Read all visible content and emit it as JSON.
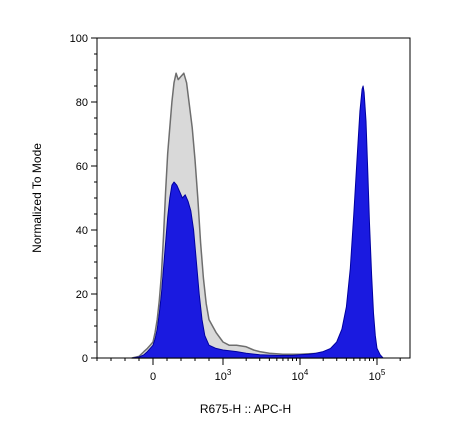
{
  "chart_data": {
    "type": "area",
    "xlabel": "R675-H :: APC-H",
    "ylabel": "Normalized To Mode",
    "x_scale": "biexponential",
    "ylim": [
      0,
      100
    ],
    "y_ticks": [
      "0",
      "20",
      "40",
      "60",
      "80",
      "100"
    ],
    "x_ticks": [
      {
        "value": 0,
        "base": "0",
        "exp": ""
      },
      {
        "value": 1000,
        "base": "10",
        "exp": "3"
      },
      {
        "value": 10000,
        "base": "10",
        "exp": "4"
      },
      {
        "value": 100000,
        "base": "10",
        "exp": "5"
      }
    ],
    "grid": false,
    "legend": "none",
    "series": [
      {
        "fill": "#d9d9d9",
        "stroke": "#6e6e6e",
        "points": [
          [
            -300,
            0
          ],
          [
            -200,
            0.5
          ],
          [
            -130,
            2
          ],
          [
            -80,
            3
          ],
          [
            -40,
            4
          ],
          [
            0,
            5
          ],
          [
            30,
            8
          ],
          [
            60,
            12
          ],
          [
            90,
            18
          ],
          [
            120,
            26
          ],
          [
            150,
            38
          ],
          [
            180,
            52
          ],
          [
            210,
            64
          ],
          [
            240,
            72
          ],
          [
            270,
            80
          ],
          [
            300,
            86
          ],
          [
            330,
            89
          ],
          [
            360,
            87
          ],
          [
            400,
            88
          ],
          [
            440,
            89
          ],
          [
            480,
            86
          ],
          [
            520,
            79
          ],
          [
            560,
            72
          ],
          [
            600,
            62
          ],
          [
            640,
            50
          ],
          [
            680,
            36
          ],
          [
            720,
            25
          ],
          [
            760,
            17
          ],
          [
            800,
            12
          ],
          [
            900,
            8
          ],
          [
            1000,
            5
          ],
          [
            1200,
            4
          ],
          [
            1500,
            4
          ],
          [
            2000,
            3.5
          ],
          [
            2500,
            2.5
          ],
          [
            3000,
            2
          ],
          [
            4000,
            1.5
          ],
          [
            6000,
            1.2
          ],
          [
            8000,
            1.2
          ],
          [
            10000,
            1.2
          ],
          [
            13000,
            1.3
          ],
          [
            16000,
            1.4
          ],
          [
            20000,
            1.5
          ],
          [
            25000,
            1.6
          ],
          [
            30000,
            1.5
          ],
          [
            40000,
            0.8
          ],
          [
            60000,
            0.3
          ],
          [
            100000,
            0.1
          ]
        ]
      },
      {
        "fill": "#1a1ae0",
        "stroke": "#0000a0",
        "points": [
          [
            -300,
            0
          ],
          [
            -200,
            0.3
          ],
          [
            -130,
            1
          ],
          [
            -80,
            2
          ],
          [
            -40,
            3
          ],
          [
            0,
            4
          ],
          [
            30,
            6
          ],
          [
            60,
            9
          ],
          [
            90,
            14
          ],
          [
            120,
            20
          ],
          [
            150,
            28
          ],
          [
            180,
            36
          ],
          [
            210,
            44
          ],
          [
            240,
            50
          ],
          [
            270,
            54
          ],
          [
            300,
            55
          ],
          [
            340,
            54
          ],
          [
            380,
            52
          ],
          [
            420,
            50
          ],
          [
            460,
            51
          ],
          [
            500,
            49
          ],
          [
            540,
            46
          ],
          [
            580,
            40
          ],
          [
            620,
            30
          ],
          [
            660,
            20
          ],
          [
            700,
            12
          ],
          [
            740,
            7
          ],
          [
            800,
            4
          ],
          [
            900,
            3
          ],
          [
            1000,
            2.5
          ],
          [
            1500,
            2
          ],
          [
            2000,
            1.5
          ],
          [
            3000,
            1
          ],
          [
            5000,
            0.8
          ],
          [
            8000,
            0.8
          ],
          [
            10000,
            1
          ],
          [
            13000,
            1.2
          ],
          [
            16000,
            1.5
          ],
          [
            20000,
            2
          ],
          [
            25000,
            3
          ],
          [
            30000,
            5
          ],
          [
            35000,
            9
          ],
          [
            40000,
            16
          ],
          [
            45000,
            28
          ],
          [
            50000,
            45
          ],
          [
            55000,
            62
          ],
          [
            60000,
            77
          ],
          [
            64000,
            84
          ],
          [
            66000,
            85
          ],
          [
            68000,
            83
          ],
          [
            72000,
            74
          ],
          [
            76000,
            58
          ],
          [
            80000,
            42
          ],
          [
            85000,
            26
          ],
          [
            90000,
            14
          ],
          [
            95000,
            7
          ],
          [
            100000,
            3
          ],
          [
            110000,
            1
          ],
          [
            120000,
            0
          ]
        ]
      }
    ]
  }
}
